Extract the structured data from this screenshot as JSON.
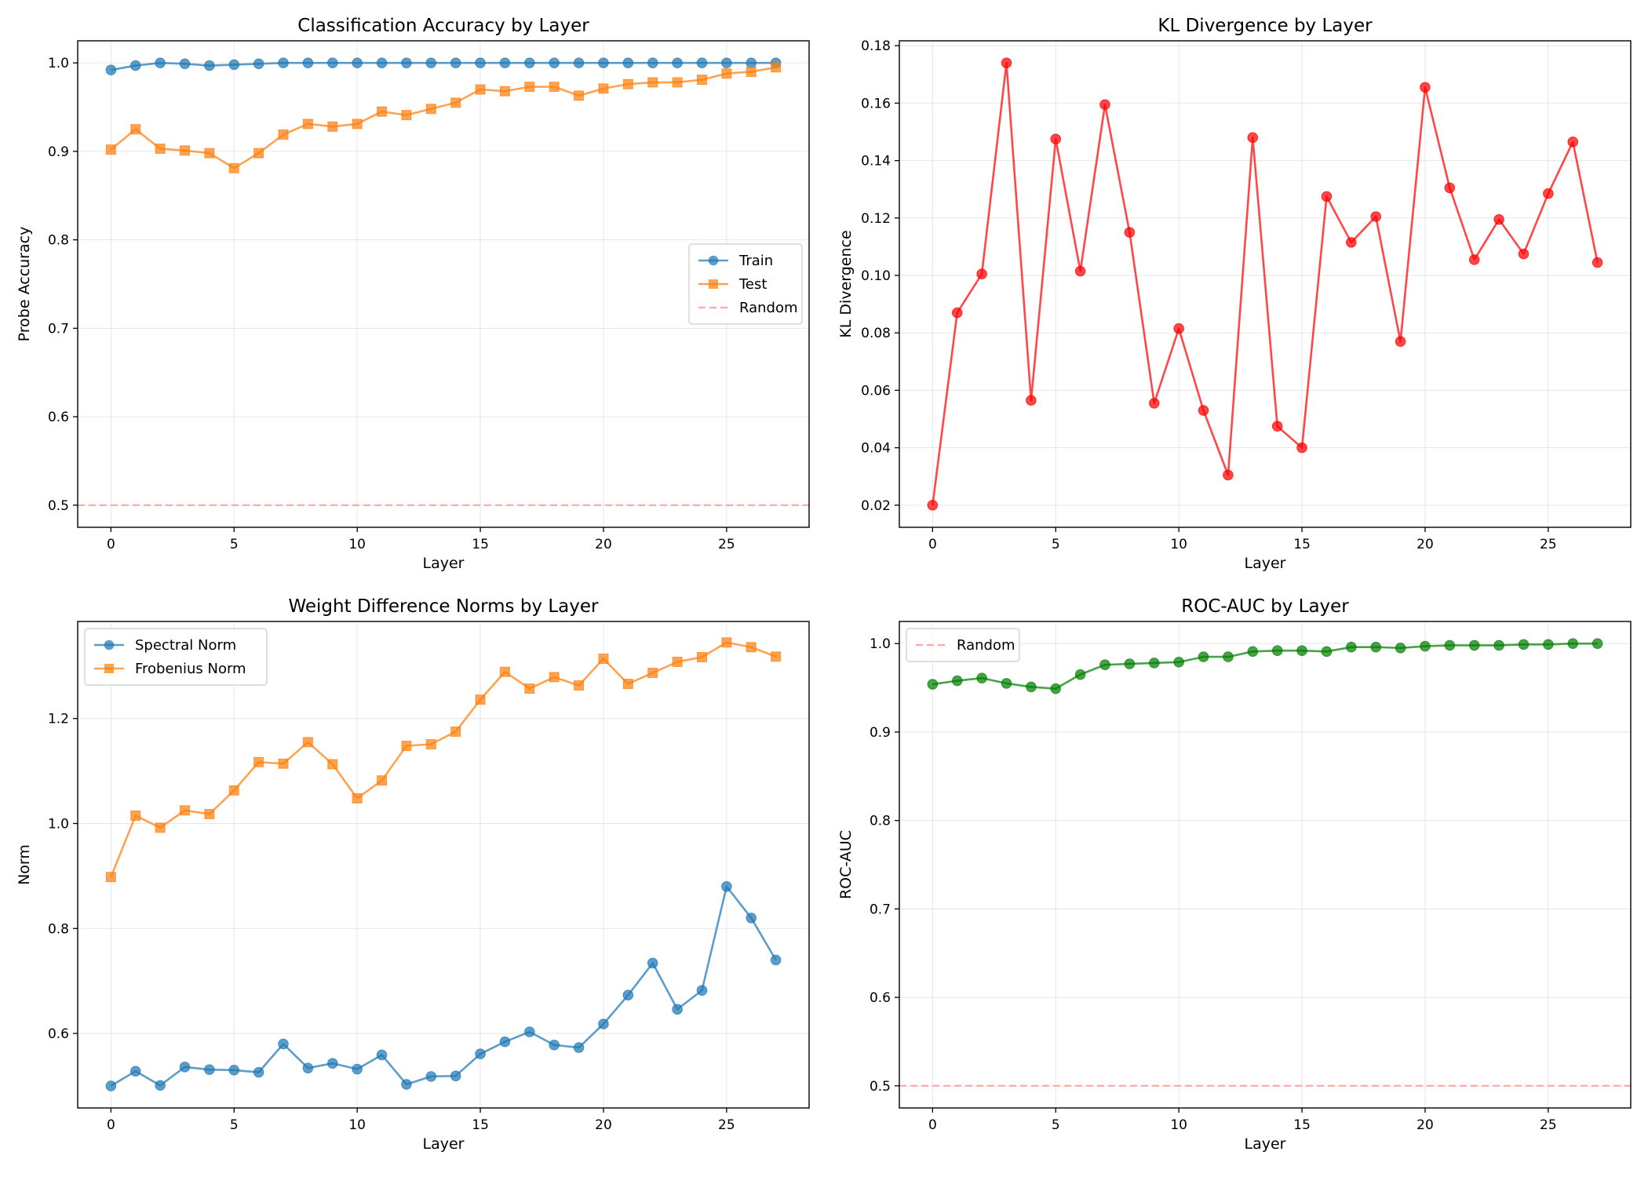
{
  "chart_data": [
    {
      "type": "line",
      "title": "Classification Accuracy by Layer",
      "xlabel": "Layer",
      "ylabel": "Probe Accuracy",
      "xlim": [
        -1.35,
        28.35
      ],
      "ylim": [
        0.475,
        1.025
      ],
      "xticks": [
        0,
        5,
        10,
        15,
        20,
        25
      ],
      "yticks": [
        0.5,
        0.6,
        0.7,
        0.8,
        0.9,
        1.0
      ],
      "ytick_labels": [
        "0.5",
        "0.6",
        "0.7",
        "0.8",
        "0.9",
        "1.0"
      ],
      "grid": true,
      "legend_location": "center-right",
      "x": [
        0,
        1,
        2,
        3,
        4,
        5,
        6,
        7,
        8,
        9,
        10,
        11,
        12,
        13,
        14,
        15,
        16,
        17,
        18,
        19,
        20,
        21,
        22,
        23,
        24,
        25,
        26,
        27
      ],
      "series": [
        {
          "name": "Train",
          "color": "#1f77b4",
          "marker": "circle",
          "values": [
            0.992,
            0.997,
            1.0,
            0.999,
            0.997,
            0.998,
            0.999,
            1.0,
            1.0,
            1.0,
            1.0,
            1.0,
            1.0,
            1.0,
            1.0,
            1.0,
            1.0,
            1.0,
            1.0,
            1.0,
            1.0,
            1.0,
            1.0,
            1.0,
            1.0,
            1.0,
            1.0,
            1.0
          ]
        },
        {
          "name": "Test",
          "color": "#ff7f0e",
          "marker": "square",
          "values": [
            0.902,
            0.925,
            0.903,
            0.901,
            0.898,
            0.881,
            0.898,
            0.919,
            0.931,
            0.928,
            0.931,
            0.945,
            0.941,
            0.948,
            0.955,
            0.97,
            0.968,
            0.973,
            0.973,
            0.963,
            0.971,
            0.976,
            0.978,
            0.978,
            0.981,
            0.988,
            0.99,
            0.995
          ]
        }
      ],
      "hlines": [
        {
          "name": "Random",
          "value": 0.5,
          "color": "#ff9896"
        }
      ]
    },
    {
      "type": "line",
      "title": "KL Divergence by Layer",
      "xlabel": "Layer",
      "ylabel": "KL Divergence",
      "xlim": [
        -1.35,
        28.35
      ],
      "ylim": [
        0.0123,
        0.1817
      ],
      "xticks": [
        0,
        5,
        10,
        15,
        20,
        25
      ],
      "yticks": [
        0.02,
        0.04,
        0.06,
        0.08,
        0.1,
        0.12,
        0.14,
        0.16,
        0.18
      ],
      "ytick_labels": [
        "0.02",
        "0.04",
        "0.06",
        "0.08",
        "0.10",
        "0.12",
        "0.14",
        "0.16",
        "0.18"
      ],
      "grid": true,
      "legend_location": "",
      "x": [
        0,
        1,
        2,
        3,
        4,
        5,
        6,
        7,
        8,
        9,
        10,
        11,
        12,
        13,
        14,
        15,
        16,
        17,
        18,
        19,
        20,
        21,
        22,
        23,
        24,
        25,
        26,
        27
      ],
      "series": [
        {
          "name": "KL Divergence",
          "color": "#ff0000",
          "marker": "circle",
          "values": [
            0.02,
            0.087,
            0.1005,
            0.174,
            0.0565,
            0.1475,
            0.1015,
            0.1595,
            0.115,
            0.0555,
            0.0815,
            0.053,
            0.0305,
            0.148,
            0.0475,
            0.04,
            0.1275,
            0.1115,
            0.1205,
            0.077,
            0.1655,
            0.1305,
            0.1055,
            0.1195,
            0.1075,
            0.1285,
            0.1465,
            0.1045
          ]
        }
      ],
      "hlines": []
    },
    {
      "type": "line",
      "title": "Weight Difference Norms by Layer",
      "xlabel": "Layer",
      "ylabel": "Norm",
      "xlim": [
        -1.35,
        28.35
      ],
      "ylim": [
        0.458,
        1.385
      ],
      "xticks": [
        0,
        5,
        10,
        15,
        20,
        25
      ],
      "yticks": [
        0.6,
        0.8,
        1.0,
        1.2
      ],
      "ytick_labels": [
        "0.6",
        "0.8",
        "1.0",
        "1.2"
      ],
      "grid": true,
      "legend_location": "upper-left",
      "x": [
        0,
        1,
        2,
        3,
        4,
        5,
        6,
        7,
        8,
        9,
        10,
        11,
        12,
        13,
        14,
        15,
        16,
        17,
        18,
        19,
        20,
        21,
        22,
        23,
        24,
        25,
        26,
        27
      ],
      "series": [
        {
          "name": "Spectral Norm",
          "color": "#1f77b4",
          "marker": "circle",
          "values": [
            0.5,
            0.528,
            0.501,
            0.536,
            0.531,
            0.53,
            0.526,
            0.58,
            0.534,
            0.543,
            0.532,
            0.559,
            0.503,
            0.518,
            0.519,
            0.561,
            0.584,
            0.603,
            0.578,
            0.573,
            0.618,
            0.673,
            0.734,
            0.646,
            0.682,
            0.88,
            0.82,
            0.74
          ]
        },
        {
          "name": "Frobenius Norm",
          "color": "#ff7f0e",
          "marker": "square",
          "values": [
            0.898,
            1.015,
            0.992,
            1.025,
            1.018,
            1.063,
            1.117,
            1.114,
            1.155,
            1.113,
            1.048,
            1.082,
            1.148,
            1.151,
            1.175,
            1.236,
            1.289,
            1.257,
            1.279,
            1.263,
            1.314,
            1.266,
            1.287,
            1.308,
            1.317,
            1.345,
            1.336,
            1.318
          ]
        }
      ],
      "hlines": []
    },
    {
      "type": "line",
      "title": "ROC-AUC by Layer",
      "xlabel": "Layer",
      "ylabel": "ROC-AUC",
      "xlim": [
        -1.35,
        28.35
      ],
      "ylim": [
        0.475,
        1.025
      ],
      "xticks": [
        0,
        5,
        10,
        15,
        20,
        25
      ],
      "yticks": [
        0.5,
        0.6,
        0.7,
        0.8,
        0.9,
        1.0
      ],
      "ytick_labels": [
        "0.5",
        "0.6",
        "0.7",
        "0.8",
        "0.9",
        "1.0"
      ],
      "grid": true,
      "legend_location": "upper-left",
      "x": [
        0,
        1,
        2,
        3,
        4,
        5,
        6,
        7,
        8,
        9,
        10,
        11,
        12,
        13,
        14,
        15,
        16,
        17,
        18,
        19,
        20,
        21,
        22,
        23,
        24,
        25,
        26,
        27
      ],
      "series": [
        {
          "name": "ROC-AUC",
          "color": "#008000",
          "marker": "circle",
          "legend": false,
          "values": [
            0.954,
            0.958,
            0.961,
            0.955,
            0.951,
            0.949,
            0.965,
            0.976,
            0.977,
            0.978,
            0.979,
            0.985,
            0.985,
            0.991,
            0.992,
            0.992,
            0.991,
            0.996,
            0.996,
            0.995,
            0.997,
            0.998,
            0.998,
            0.998,
            0.999,
            0.999,
            1.0,
            1.0
          ]
        }
      ],
      "hlines": [
        {
          "name": "Random",
          "value": 0.5,
          "color": "#ff9896"
        }
      ]
    }
  ]
}
